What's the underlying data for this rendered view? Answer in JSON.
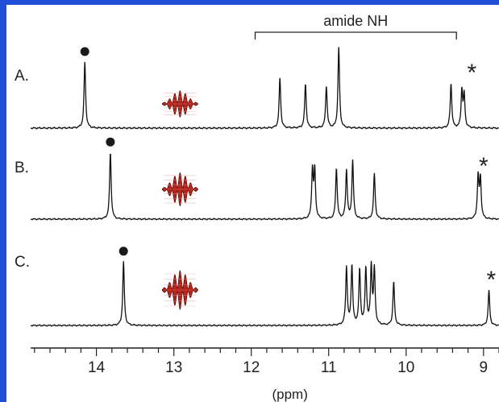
{
  "chart_data": {
    "type": "line",
    "title": "",
    "xlabel": "(ppm)",
    "ylabel": "",
    "xlim": [
      14.85,
      8.8
    ],
    "x_reversed": true,
    "xticks": [
      14,
      13,
      12,
      11,
      10,
      9
    ],
    "xtick_labels": [
      "14",
      "13",
      "12",
      "11",
      "10",
      "9"
    ],
    "minor_tick_step": 0.2,
    "grid": false,
    "bracket": {
      "label": "amide NH",
      "x_from": 11.95,
      "x_to": 9.35
    },
    "panels": [
      {
        "label": "A.",
        "marker_dot_ppm": 14.15,
        "star_ppm": 9.15,
        "wave_amplitude": 0.45,
        "peaks": [
          {
            "ppm": 14.15,
            "height": 0.82
          },
          {
            "ppm": 11.63,
            "height": 0.62
          },
          {
            "ppm": 11.3,
            "height": 0.55
          },
          {
            "ppm": 11.03,
            "height": 0.52
          },
          {
            "ppm": 10.87,
            "height": 1.0
          },
          {
            "ppm": 9.42,
            "height": 0.55
          },
          {
            "ppm": 9.28,
            "height": 0.46
          },
          {
            "ppm": 9.25,
            "height": 0.4
          }
        ]
      },
      {
        "label": "B.",
        "marker_dot_ppm": 13.82,
        "star_ppm": 9.0,
        "wave_amplitude": 0.75,
        "peaks": [
          {
            "ppm": 13.82,
            "height": 0.92
          },
          {
            "ppm": 11.21,
            "height": 0.66
          },
          {
            "ppm": 11.18,
            "height": 0.66
          },
          {
            "ppm": 10.9,
            "height": 0.7
          },
          {
            "ppm": 10.77,
            "height": 0.67
          },
          {
            "ppm": 10.69,
            "height": 0.8
          },
          {
            "ppm": 10.41,
            "height": 0.63
          },
          {
            "ppm": 9.07,
            "height": 0.58
          },
          {
            "ppm": 9.04,
            "height": 0.55
          }
        ]
      },
      {
        "label": "C.",
        "marker_dot_ppm": 13.65,
        "star_ppm": 8.9,
        "wave_amplitude": 1.0,
        "peaks": [
          {
            "ppm": 13.65,
            "height": 0.88
          },
          {
            "ppm": 10.77,
            "height": 0.8
          },
          {
            "ppm": 10.7,
            "height": 0.82
          },
          {
            "ppm": 10.6,
            "height": 0.76
          },
          {
            "ppm": 10.52,
            "height": 0.78
          },
          {
            "ppm": 10.45,
            "height": 0.8
          },
          {
            "ppm": 10.41,
            "height": 0.76
          },
          {
            "ppm": 10.16,
            "height": 0.6
          },
          {
            "ppm": 8.93,
            "height": 0.48
          }
        ]
      }
    ]
  },
  "colors": {
    "frame": "#1f4fd8",
    "trace": "#111111",
    "wave_fill": "#b5251d",
    "wave_edge": "#5a0d08"
  },
  "icons": {
    "dot": "filled-circle-marker",
    "star": "asterisk-marker",
    "wave": "red-wave-packet"
  }
}
